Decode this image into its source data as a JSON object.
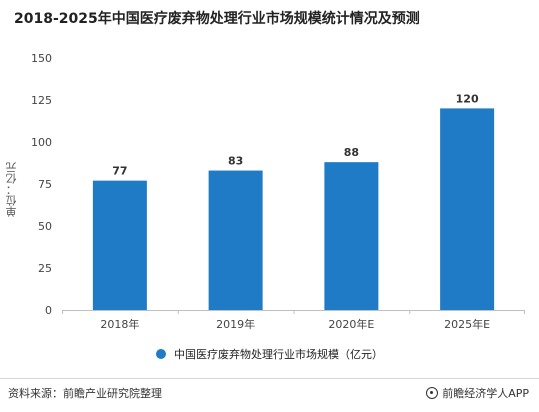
{
  "title": "2018-2025年中国医疗废弃物处理行业市场规模统计情况及预测",
  "source": "资料来源：前瞻产业研究院整理",
  "brand": "前瞻经济学人APP",
  "colors": {
    "bar": "#1f7bc6",
    "axis": "#bfbfbf",
    "text": "#444444"
  },
  "chart_data": {
    "type": "bar",
    "title": "2018-2025年中国医疗废弃物处理行业市场规模统计情况及预测",
    "categories": [
      "2018年",
      "2019年",
      "2020年E",
      "2025年E"
    ],
    "series": [
      {
        "name": "中国医疗废弃物处理行业市场规模（亿元）",
        "values": [
          77,
          83,
          88,
          120
        ]
      }
    ],
    "xlabel": "",
    "ylabel": "单位：亿元",
    "ylim": [
      0,
      150
    ],
    "yticks": [
      0,
      25,
      50,
      75,
      100,
      125,
      150
    ],
    "grid": false,
    "legend": "bottom"
  }
}
